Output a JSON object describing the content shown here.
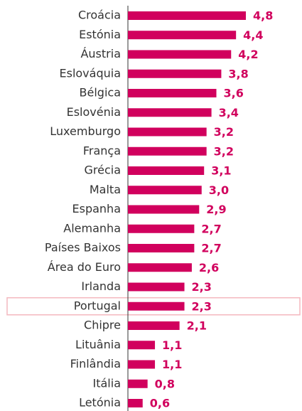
{
  "chart_data": {
    "type": "bar",
    "orientation": "horizontal",
    "categories": [
      "Croácia",
      "Estónia",
      "Áustria",
      "Eslováquia",
      "Bélgica",
      "Eslovénia",
      "Luxemburgo",
      "França",
      "Grécia",
      "Malta",
      "Espanha",
      "Alemanha",
      "Países Baixos",
      "Área do Euro",
      "Irlanda",
      "Portugal",
      "Chipre",
      "Lituânia",
      "Finlândia",
      "Itália",
      "Letónia"
    ],
    "values": [
      4.8,
      4.4,
      4.2,
      3.8,
      3.6,
      3.4,
      3.2,
      3.2,
      3.1,
      3.0,
      2.9,
      2.7,
      2.7,
      2.6,
      2.3,
      2.3,
      2.1,
      1.1,
      1.1,
      0.8,
      0.6
    ],
    "value_labels": [
      "4,8",
      "4,4",
      "4,2",
      "3,8",
      "3,6",
      "3,4",
      "3,2",
      "3,2",
      "3,1",
      "3,0",
      "2,9",
      "2,7",
      "2,7",
      "2,6",
      "2,3",
      "2,3",
      "2,1",
      "1,1",
      "1,1",
      "0,8",
      "0,6"
    ],
    "color": "#d1005d",
    "highlight": "Portugal"
  }
}
